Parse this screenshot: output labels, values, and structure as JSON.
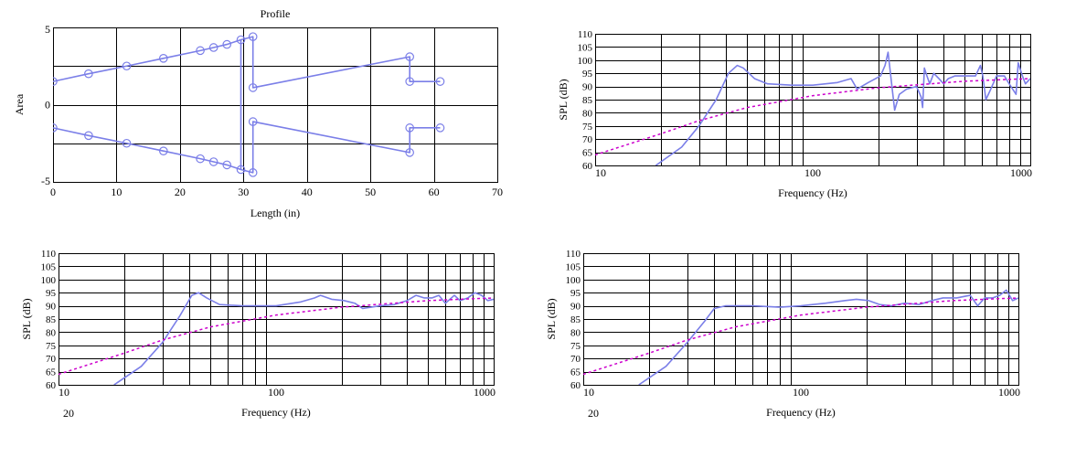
{
  "colors": {
    "response": "#7b7fe8",
    "reference": "#cc00cc",
    "grid": "#000000",
    "background": "#ffffff"
  },
  "chart_data": [
    {
      "type": "line",
      "title": "Profile",
      "xlabel": "Length (in)",
      "ylabel": "Area",
      "xlim": [
        0,
        70
      ],
      "ylim": [
        -5,
        5
      ],
      "xticks": [
        0,
        10,
        20,
        30,
        40,
        50,
        60,
        70
      ],
      "yticks": [
        -5,
        0,
        5
      ],
      "grid": true,
      "markers": "circle",
      "series": [
        {
          "values": [
            [
              0,
              1.5
            ],
            [
              5.6,
              2.0
            ],
            [
              11.6,
              2.5
            ],
            [
              17.4,
              3.0
            ],
            [
              23.2,
              3.5
            ],
            [
              25.3,
              3.7
            ],
            [
              27.4,
              3.9
            ],
            [
              29.6,
              4.2
            ],
            [
              31.5,
              4.4
            ],
            [
              31.5,
              1.1
            ],
            [
              56.2,
              3.1
            ],
            [
              56.2,
              1.5
            ],
            [
              61.0,
              1.5
            ]
          ]
        },
        {
          "values": [
            [
              0,
              -1.5
            ],
            [
              5.6,
              -2.0
            ],
            [
              11.6,
              -2.5
            ],
            [
              17.4,
              -3.0
            ],
            [
              23.2,
              -3.5
            ],
            [
              25.3,
              -3.7
            ],
            [
              27.4,
              -3.9
            ],
            [
              29.6,
              -4.2
            ],
            [
              31.5,
              -4.4
            ],
            [
              31.5,
              -1.1
            ],
            [
              56.2,
              -3.1
            ],
            [
              56.2,
              -1.5
            ],
            [
              61.0,
              -1.5
            ]
          ]
        }
      ],
      "vlines": [
        {
          "x": 29.6,
          "y1": -4.2,
          "y2": 4.2
        }
      ]
    },
    {
      "type": "line",
      "xlabel": "Frequency (Hz)",
      "ylabel": "SPL (dB)",
      "xscale": "log",
      "xlim": [
        10,
        1000
      ],
      "ylim": [
        60,
        110
      ],
      "xticks": [
        10,
        100,
        1000
      ],
      "yticks": [
        60,
        65,
        70,
        75,
        80,
        85,
        90,
        95,
        100,
        105,
        110
      ],
      "grid": true,
      "series": [
        {
          "style": "solid",
          "values": [
            [
              19,
              60
            ],
            [
              25,
              67
            ],
            [
              30,
              75
            ],
            [
              36,
              85
            ],
            [
              41,
              95
            ],
            [
              45,
              98
            ],
            [
              48,
              97
            ],
            [
              54,
              93
            ],
            [
              62,
              91
            ],
            [
              80,
              90.5
            ],
            [
              100,
              90.5
            ],
            [
              130,
              91.5
            ],
            [
              150,
              93
            ],
            [
              160,
              89
            ],
            [
              180,
              91.5
            ],
            [
              205,
              94
            ],
            [
              215,
              98
            ],
            [
              222,
              103
            ],
            [
              232,
              89
            ],
            [
              238,
              81
            ],
            [
              250,
              87
            ],
            [
              270,
              89
            ],
            [
              300,
              90
            ],
            [
              315,
              86
            ],
            [
              320,
              82
            ],
            [
              326,
              97
            ],
            [
              335,
              94
            ],
            [
              345,
              91
            ],
            [
              360,
              95
            ],
            [
              380,
              93
            ],
            [
              400,
              91
            ],
            [
              420,
              93
            ],
            [
              450,
              94
            ],
            [
              500,
              94
            ],
            [
              560,
              94
            ],
            [
              590,
              98
            ],
            [
              605,
              94
            ],
            [
              625,
              85
            ],
            [
              650,
              88
            ],
            [
              700,
              94
            ],
            [
              760,
              94
            ],
            [
              800,
              91
            ],
            [
              860,
              87
            ],
            [
              880,
              99
            ],
            [
              920,
              94
            ],
            [
              950,
              91
            ],
            [
              1000,
              93
            ]
          ]
        },
        {
          "style": "dashed",
          "values": [
            [
              10,
              64
            ],
            [
              20,
              72
            ],
            [
              30,
              77
            ],
            [
              50,
              82
            ],
            [
              100,
              86.5
            ],
            [
              200,
              89.5
            ],
            [
              500,
              92
            ],
            [
              1000,
              93
            ]
          ]
        }
      ]
    },
    {
      "type": "line",
      "xlabel": "Frequency (Hz)",
      "ylabel": "SPL (dB)",
      "xscale": "log",
      "xlim": [
        10,
        1000
      ],
      "ylim": [
        60,
        110
      ],
      "xticks": [
        10,
        100,
        1000
      ],
      "yticks": [
        60,
        65,
        70,
        75,
        80,
        85,
        90,
        95,
        100,
        105,
        110
      ],
      "note": "20",
      "grid": true,
      "series": [
        {
          "style": "solid",
          "values": [
            [
              18,
              60
            ],
            [
              24,
              67
            ],
            [
              30,
              76
            ],
            [
              36,
              86
            ],
            [
              41,
              94
            ],
            [
              44,
              95
            ],
            [
              48,
              93
            ],
            [
              55,
              90.5
            ],
            [
              70,
              90
            ],
            [
              100,
              90
            ],
            [
              130,
              91.5
            ],
            [
              150,
              93
            ],
            [
              160,
              94
            ],
            [
              180,
              92.5
            ],
            [
              205,
              92
            ],
            [
              230,
              91
            ],
            [
              250,
              89
            ],
            [
              300,
              90
            ],
            [
              350,
              90.5
            ],
            [
              400,
              92
            ],
            [
              440,
              94
            ],
            [
              480,
              93
            ],
            [
              520,
              93
            ],
            [
              560,
              94
            ],
            [
              600,
              91
            ],
            [
              660,
              94
            ],
            [
              700,
              92
            ],
            [
              760,
              93
            ],
            [
              820,
              95
            ],
            [
              880,
              94
            ],
            [
              940,
              92
            ],
            [
              1000,
              92.5
            ]
          ]
        },
        {
          "style": "dashed",
          "values": [
            [
              10,
              64
            ],
            [
              20,
              72
            ],
            [
              30,
              77
            ],
            [
              50,
              82
            ],
            [
              100,
              86.5
            ],
            [
              200,
              89.5
            ],
            [
              500,
              92
            ],
            [
              1000,
              93
            ]
          ]
        }
      ]
    },
    {
      "type": "line",
      "xlabel": "Frequency (Hz)",
      "ylabel": "SPL (dB)",
      "xscale": "log",
      "xlim": [
        10,
        1000
      ],
      "ylim": [
        60,
        110
      ],
      "xticks": [
        10,
        100,
        1000
      ],
      "yticks": [
        60,
        65,
        70,
        75,
        80,
        85,
        90,
        95,
        100,
        105,
        110
      ],
      "note": "20",
      "grid": true,
      "series": [
        {
          "style": "solid",
          "values": [
            [
              18,
              60
            ],
            [
              24,
              67
            ],
            [
              30,
              76
            ],
            [
              36,
              84
            ],
            [
              40,
              89
            ],
            [
              45,
              90
            ],
            [
              60,
              90
            ],
            [
              80,
              89.5
            ],
            [
              100,
              90
            ],
            [
              130,
              91
            ],
            [
              160,
              92
            ],
            [
              180,
              92.5
            ],
            [
              205,
              92
            ],
            [
              230,
              90.5
            ],
            [
              260,
              90
            ],
            [
              300,
              91
            ],
            [
              350,
              90.5
            ],
            [
              400,
              92
            ],
            [
              450,
              93
            ],
            [
              520,
              93
            ],
            [
              600,
              94
            ],
            [
              650,
              90
            ],
            [
              700,
              93
            ],
            [
              760,
              93
            ],
            [
              820,
              94
            ],
            [
              880,
              96
            ],
            [
              940,
              92
            ],
            [
              1000,
              93
            ]
          ]
        },
        {
          "style": "dashed",
          "values": [
            [
              10,
              64
            ],
            [
              20,
              72
            ],
            [
              30,
              77
            ],
            [
              50,
              82
            ],
            [
              100,
              86.5
            ],
            [
              200,
              89.5
            ],
            [
              500,
              92
            ],
            [
              1000,
              93
            ]
          ]
        }
      ]
    }
  ]
}
